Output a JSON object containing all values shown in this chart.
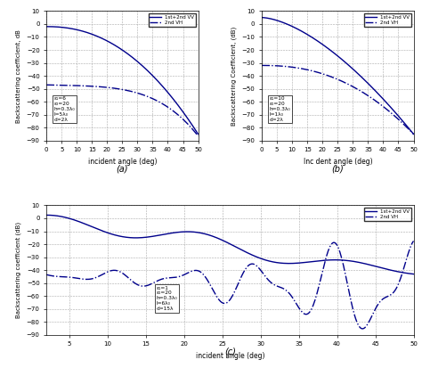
{
  "fig_width": 4.74,
  "fig_height": 4.13,
  "dpi": 100,
  "background_color": "#ffffff",
  "line_color": "#00008B",
  "subplot_a": {
    "title": "(a)",
    "xlabel": "incident angle (deg)",
    "ylabel": "Backscattering coefficient, dB",
    "xlim": [
      0,
      50
    ],
    "ylim": [
      -90,
      10
    ],
    "yticks": [
      10,
      0,
      -10,
      -20,
      -30,
      -40,
      -50,
      -60,
      -70,
      -80,
      -90
    ],
    "xticks": [
      0,
      5,
      10,
      15,
      20,
      25,
      30,
      35,
      40,
      45,
      50
    ],
    "legend": [
      "1st+2nd VV",
      "2nd VH"
    ],
    "annotation": "ε₁=6\nε₂=20\nh=0.3λ₀\nl=5λ₀\nd=2λ"
  },
  "subplot_b": {
    "title": "(b)",
    "xlabel": "Inc dent angle (deg)",
    "ylabel": "Backscattering Coefficient, (dB)",
    "xlim": [
      0,
      50
    ],
    "ylim": [
      -90,
      10
    ],
    "yticks": [
      10,
      0,
      -10,
      -20,
      -30,
      -40,
      -50,
      -60,
      -70,
      -80,
      -90
    ],
    "xticks": [
      0,
      5,
      10,
      15,
      20,
      25,
      30,
      35,
      40,
      45,
      50
    ],
    "legend": [
      "1st+2nd VV",
      "2nd VH"
    ],
    "annotation": "ε₁=10\nε₂=20\nh=0.3λ₀\nl=1λ₀\nd=2λ"
  },
  "subplot_c": {
    "title": "(c)",
    "xlabel": "incident angle (deg)",
    "ylabel": "Backscattering coefficient (dB)",
    "xlim": [
      2,
      50
    ],
    "ylim": [
      -90,
      10
    ],
    "yticks": [
      10,
      0,
      -10,
      -20,
      -30,
      -40,
      -50,
      -60,
      -70,
      -80,
      -90
    ],
    "xticks": [
      5,
      10,
      15,
      20,
      25,
      30,
      35,
      40,
      45,
      50
    ],
    "legend": [
      "1st+2nd VV",
      "2nd VH"
    ],
    "annotation": "ε₁=1\nε₂=20\nh=0.3λ₀\nl=6λ₀\nd=15λ"
  }
}
